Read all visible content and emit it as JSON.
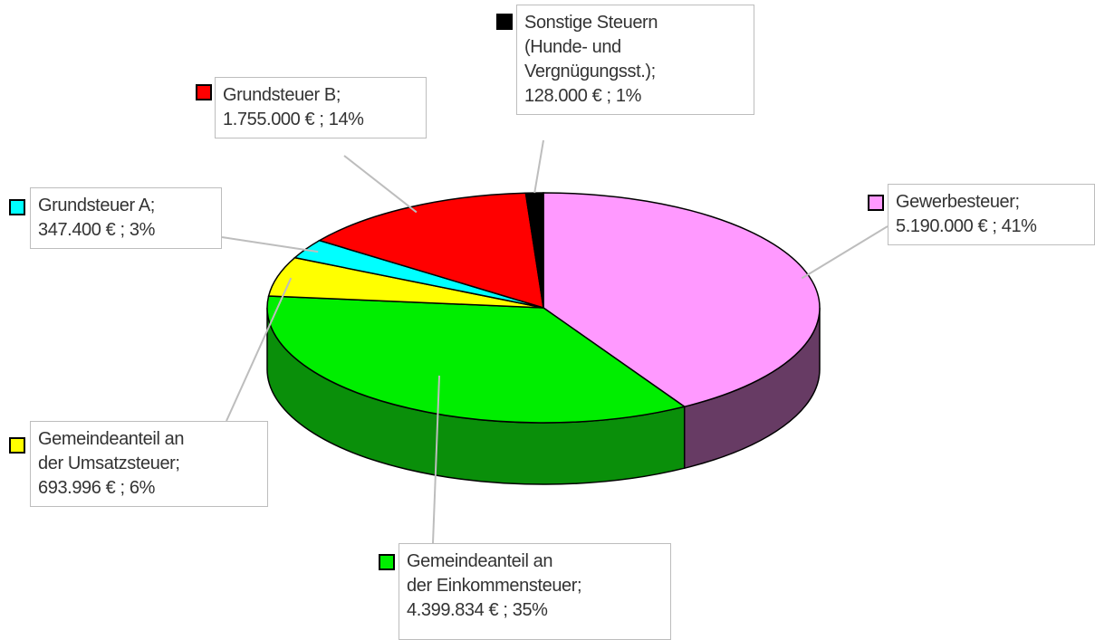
{
  "chart_data": {
    "type": "pie3d",
    "categories": [
      "Gewerbesteuer;",
      "Gemeindeanteil an\nder Einkommensteuer;",
      "Gemeindeanteil an\nder Umsatzsteuer;",
      "Grundsteuer A;",
      "Grundsteuer B;",
      "Sonstige Steuern\n(Hunde- und\nVergnügungsst.);"
    ],
    "values": [
      5190000,
      4399834,
      693996,
      347400,
      1755000,
      128000
    ],
    "value_labels": [
      "5.190.000 € ; 41%",
      "4.399.834 € ; 35%",
      "693.996 € ; 6%",
      "347.400 € ; 3%",
      "1.755.000 € ; 14%",
      "128.000 € ; 1%"
    ],
    "colors": [
      "#ff99ff",
      "#00ee00",
      "#ffff00",
      "#00ffff",
      "#ff0000",
      "#000000"
    ],
    "side_colors": [
      "#673b64",
      "#0a8f0a",
      "#a3a300",
      "#00a3a3",
      "#a30000",
      "#000000"
    ]
  }
}
